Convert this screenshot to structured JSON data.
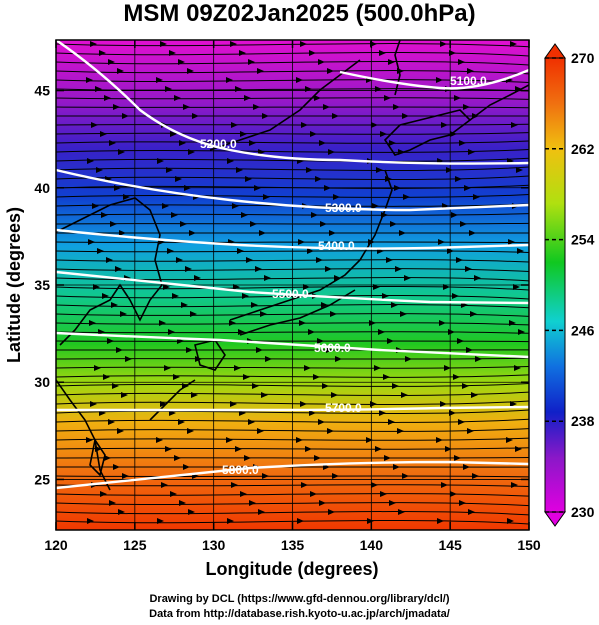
{
  "title": "MSM 09Z02Jan2025 (500.0hPa)",
  "xlabel": "Longitude (degrees)",
  "ylabel": "Latitude  (degrees)",
  "xticks": [
    120,
    125,
    130,
    135,
    140,
    145,
    150
  ],
  "yticks": [
    25,
    30,
    35,
    40,
    45
  ],
  "xlim": [
    120,
    150
  ],
  "ylim": [
    22.4,
    47.6
  ],
  "colorbar": {
    "ticks": [
      230,
      238,
      246,
      254,
      262,
      270
    ],
    "range": [
      230,
      270
    ],
    "colors": [
      "#e000e0",
      "#6a1cc8",
      "#1020c8",
      "#1090e0",
      "#10d0d0",
      "#10c820",
      "#b0e010",
      "#f0c010",
      "#f07010",
      "#f03000"
    ]
  },
  "contours": [
    {
      "label": "5100.0"
    },
    {
      "label": "5200.0"
    },
    {
      "label": "5300.0"
    },
    {
      "label": "5400.0"
    },
    {
      "label": "5500.0"
    },
    {
      "label": "5600.0"
    },
    {
      "label": "5700.0"
    },
    {
      "label": "5800.0"
    }
  ],
  "credits": {
    "line1": "Drawing by DCL (https://www.gfd-dennou.org/library/dcl/)",
    "line2": "Data from http://database.rish.kyoto-u.ac.jp/arch/jmadata/"
  }
}
